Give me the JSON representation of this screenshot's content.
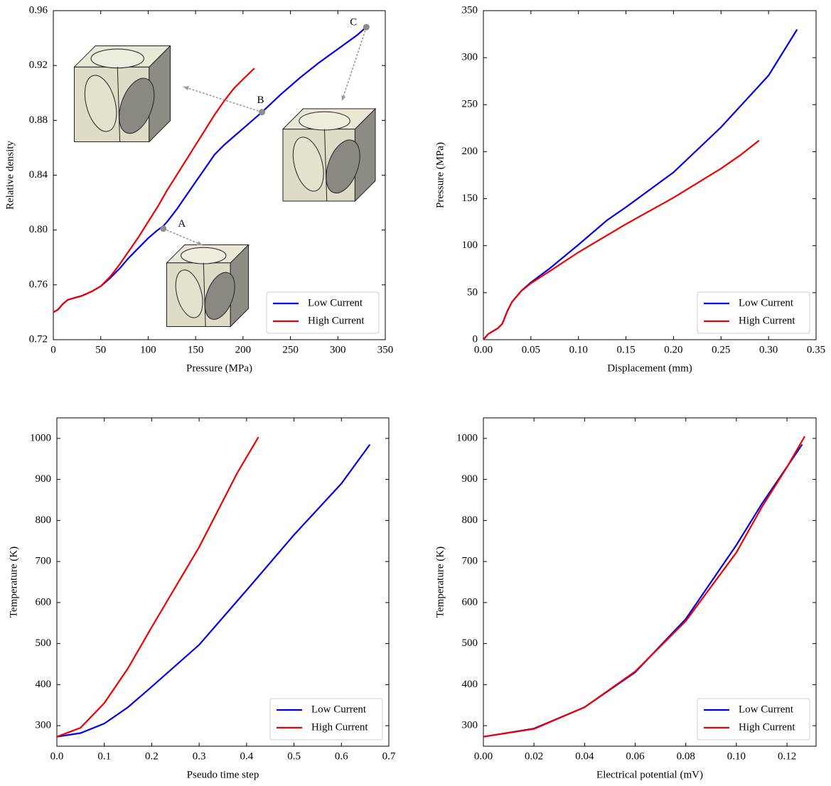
{
  "chart_data": [
    {
      "type": "line",
      "x_label": "Pressure (MPa)",
      "y_label": "Relative density",
      "xlim": [
        0,
        350
      ],
      "ylim": [
        0.72,
        0.96
      ],
      "xticks": [
        0,
        50,
        100,
        150,
        200,
        250,
        300,
        350
      ],
      "yticks": [
        0.72,
        0.76,
        {
          "value": 0.8,
          "label": "0.80"
        },
        0.84,
        0.88,
        0.92,
        0.96
      ],
      "legend": "lower right",
      "series": [
        {
          "name": "Low Current",
          "color": "#0000ee",
          "x": [
            0,
            5,
            10,
            15,
            20,
            30,
            40,
            50,
            60,
            70,
            80,
            90,
            100,
            110,
            116,
            120,
            130,
            140,
            150,
            160,
            170,
            180,
            190,
            200,
            210,
            220,
            240,
            260,
            280,
            300,
            320,
            330
          ],
          "values": [
            0.74,
            0.742,
            0.746,
            0.749,
            0.75,
            0.752,
            0.755,
            0.759,
            0.765,
            0.772,
            0.78,
            0.787,
            0.794,
            0.8,
            0.803,
            0.806,
            0.815,
            0.825,
            0.835,
            0.845,
            0.855,
            0.862,
            0.868,
            0.874,
            0.88,
            0.886,
            0.899,
            0.911,
            0.922,
            0.932,
            0.942,
            0.948
          ]
        },
        {
          "name": "High Current",
          "color": "#ee0000",
          "x": [
            0,
            5,
            10,
            15,
            20,
            30,
            40,
            50,
            60,
            70,
            80,
            90,
            100,
            110,
            120,
            130,
            140,
            150,
            160,
            170,
            180,
            190,
            200,
            212
          ],
          "values": [
            0.74,
            0.742,
            0.746,
            0.749,
            0.75,
            0.752,
            0.755,
            0.759,
            0.766,
            0.775,
            0.785,
            0.795,
            0.806,
            0.817,
            0.829,
            0.84,
            0.851,
            0.862,
            0.873,
            0.884,
            0.894,
            0.903,
            0.91,
            0.918
          ]
        }
      ],
      "annotations": [
        {
          "text": "A",
          "x": 116,
          "y": 0.801
        },
        {
          "text": "B",
          "x": 220,
          "y": 0.886
        },
        {
          "text": "C",
          "x": 330,
          "y": 0.948
        }
      ]
    },
    {
      "type": "line",
      "x_label": "Displacement (mm)",
      "y_label": "Pressure (MPa)",
      "xlim": [
        0,
        0.35
      ],
      "ylim": [
        0,
        350
      ],
      "xticks": [
        {
          "value": 0,
          "label": "0.00"
        },
        0.05,
        {
          "value": 0.1,
          "label": "0.10"
        },
        0.15,
        {
          "value": 0.2,
          "label": "0.20"
        },
        0.25,
        {
          "value": 0.3,
          "label": "0.30"
        },
        0.35
      ],
      "yticks": [
        0,
        50,
        100,
        150,
        200,
        250,
        300,
        350
      ],
      "legend": "lower right",
      "series": [
        {
          "name": "Low Current",
          "color": "#0000ee",
          "x": [
            0,
            0.005,
            0.01,
            0.015,
            0.02,
            0.025,
            0.03,
            0.04,
            0.05,
            0.07,
            0.1,
            0.13,
            0.15,
            0.2,
            0.25,
            0.3,
            0.33
          ],
          "values": [
            0,
            6,
            9,
            12,
            17,
            30,
            40,
            52,
            61,
            76,
            101,
            127,
            141,
            178,
            226,
            281,
            330
          ]
        },
        {
          "name": "High Current",
          "color": "#ee0000",
          "x": [
            0,
            0.005,
            0.01,
            0.015,
            0.02,
            0.025,
            0.03,
            0.04,
            0.05,
            0.07,
            0.1,
            0.15,
            0.2,
            0.25,
            0.27,
            0.29
          ],
          "values": [
            0,
            6,
            9,
            12,
            17,
            30,
            40,
            52,
            60,
            73,
            93,
            123,
            151,
            182,
            196,
            212
          ]
        }
      ]
    },
    {
      "type": "line",
      "x_label": "Pseudo time step",
      "y_label": "Temperature (K)",
      "xlim": [
        0,
        0.7
      ],
      "ylim": [
        250,
        1050
      ],
      "xticks": [
        {
          "value": 0,
          "label": "0.0"
        },
        0.1,
        0.2,
        0.3,
        0.4,
        0.5,
        0.6,
        0.7
      ],
      "yticks": [
        300,
        400,
        500,
        600,
        700,
        800,
        900,
        1000
      ],
      "legend": "lower right",
      "series": [
        {
          "name": "Low Current",
          "color": "#0000ee",
          "x": [
            0,
            0.05,
            0.1,
            0.15,
            0.2,
            0.3,
            0.4,
            0.5,
            0.6,
            0.66
          ],
          "values": [
            273,
            282,
            305,
            345,
            395,
            497,
            630,
            765,
            890,
            985
          ]
        },
        {
          "name": "High Current",
          "color": "#ee0000",
          "x": [
            0,
            0.05,
            0.1,
            0.15,
            0.2,
            0.3,
            0.38,
            0.425
          ],
          "values": [
            273,
            295,
            355,
            440,
            540,
            735,
            915,
            1003
          ]
        }
      ]
    },
    {
      "type": "line",
      "x_label": "Electrical potential (mV)",
      "y_label": "Temperature (K)",
      "xlim": [
        0,
        0.1315
      ],
      "ylim": [
        250,
        1050
      ],
      "xticks": [
        {
          "value": 0,
          "label": "0.00"
        },
        0.02,
        0.04,
        0.06,
        0.08,
        {
          "value": 0.1,
          "label": "0.10"
        },
        0.12
      ],
      "yticks": [
        300,
        400,
        500,
        600,
        700,
        800,
        900,
        1000
      ],
      "legend": "lower right",
      "series": [
        {
          "name": "Low Current",
          "color": "#0000ee",
          "x": [
            0,
            0.02,
            0.04,
            0.06,
            0.08,
            0.1,
            0.11,
            0.126
          ],
          "values": [
            273,
            293,
            345,
            430,
            560,
            740,
            840,
            985
          ]
        },
        {
          "name": "High Current",
          "color": "#ee0000",
          "x": [
            0,
            0.02,
            0.04,
            0.06,
            0.08,
            0.1,
            0.11,
            0.12,
            0.127
          ],
          "values": [
            273,
            292,
            345,
            432,
            555,
            722,
            832,
            930,
            1005
          ]
        }
      ]
    }
  ]
}
